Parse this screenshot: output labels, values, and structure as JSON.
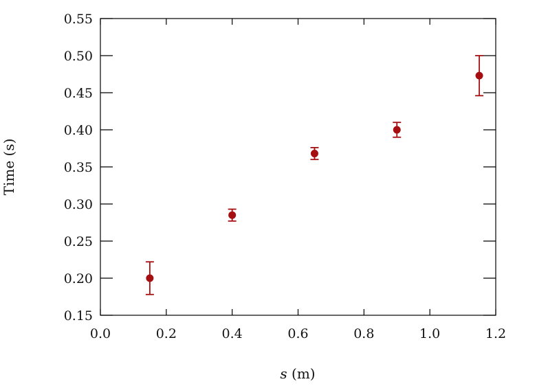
{
  "chart_data": {
    "type": "scatter",
    "xlabel_var": "s",
    "xlabel_unit": " (m)",
    "ylabel": "Time (s)",
    "xlim": [
      0.0,
      1.2
    ],
    "ylim": [
      0.15,
      0.55
    ],
    "x_ticks": [
      "0.0",
      "0.2",
      "0.4",
      "0.6",
      "0.8",
      "1.0",
      "1.2"
    ],
    "y_ticks": [
      "0.15",
      "0.20",
      "0.25",
      "0.30",
      "0.35",
      "0.40",
      "0.45",
      "0.50",
      "0.55"
    ],
    "grid": false,
    "marker_color": "#A50F12",
    "points": [
      {
        "x": 0.15,
        "y": 0.2,
        "err": 0.022
      },
      {
        "x": 0.4,
        "y": 0.285,
        "err": 0.008
      },
      {
        "x": 0.65,
        "y": 0.368,
        "err": 0.008
      },
      {
        "x": 0.9,
        "y": 0.4,
        "err": 0.01
      },
      {
        "x": 1.15,
        "y": 0.473,
        "err": 0.027
      }
    ]
  }
}
